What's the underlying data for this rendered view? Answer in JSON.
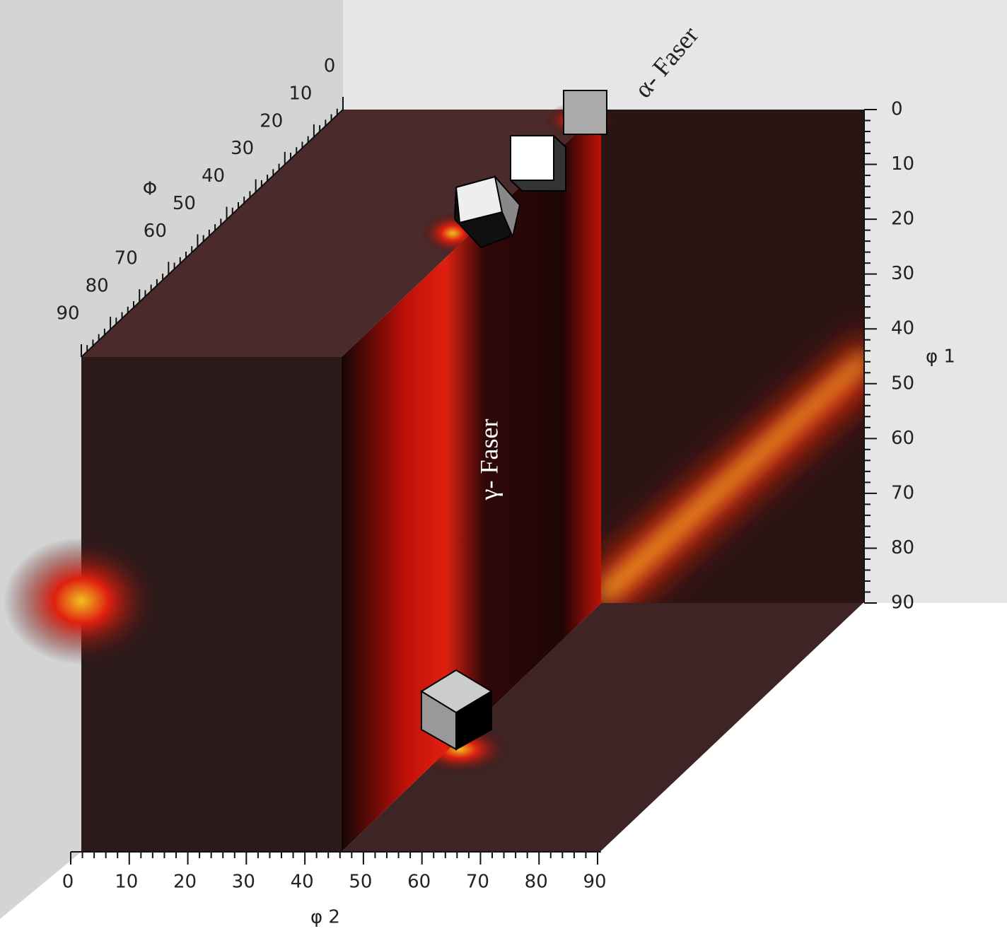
{
  "axes": {
    "phi1": {
      "label": "φ 1",
      "ticks": [
        0,
        10,
        20,
        30,
        40,
        50,
        60,
        70,
        80,
        90
      ]
    },
    "phi2": {
      "label": "φ 2",
      "ticks": [
        0,
        10,
        20,
        30,
        40,
        50,
        60,
        70,
        80,
        90
      ]
    },
    "Phi": {
      "label": "Φ",
      "ticks": [
        0,
        10,
        20,
        30,
        40,
        50,
        60,
        70,
        80,
        90
      ]
    }
  },
  "annotations": [
    "α- Faser",
    "γ- Faser"
  ]
}
